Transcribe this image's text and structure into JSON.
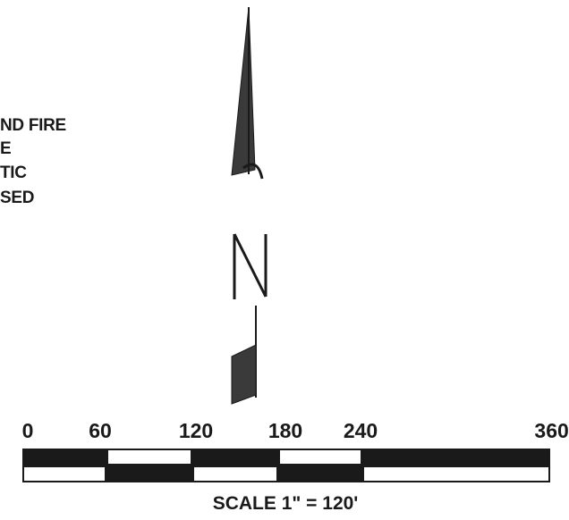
{
  "legend": {
    "lines": [
      "ND FIRE",
      "E",
      "TIC",
      "SED"
    ]
  },
  "north_arrow": {
    "letter": "N"
  },
  "scale": {
    "ticks": [
      "0",
      "60",
      "120",
      "180",
      "240",
      "360"
    ],
    "label": "SCALE 1\" = 120'"
  },
  "colors": {
    "ink": "#1a1a1a",
    "arrow_fill": "#3a3a3a",
    "background": "#ffffff"
  }
}
